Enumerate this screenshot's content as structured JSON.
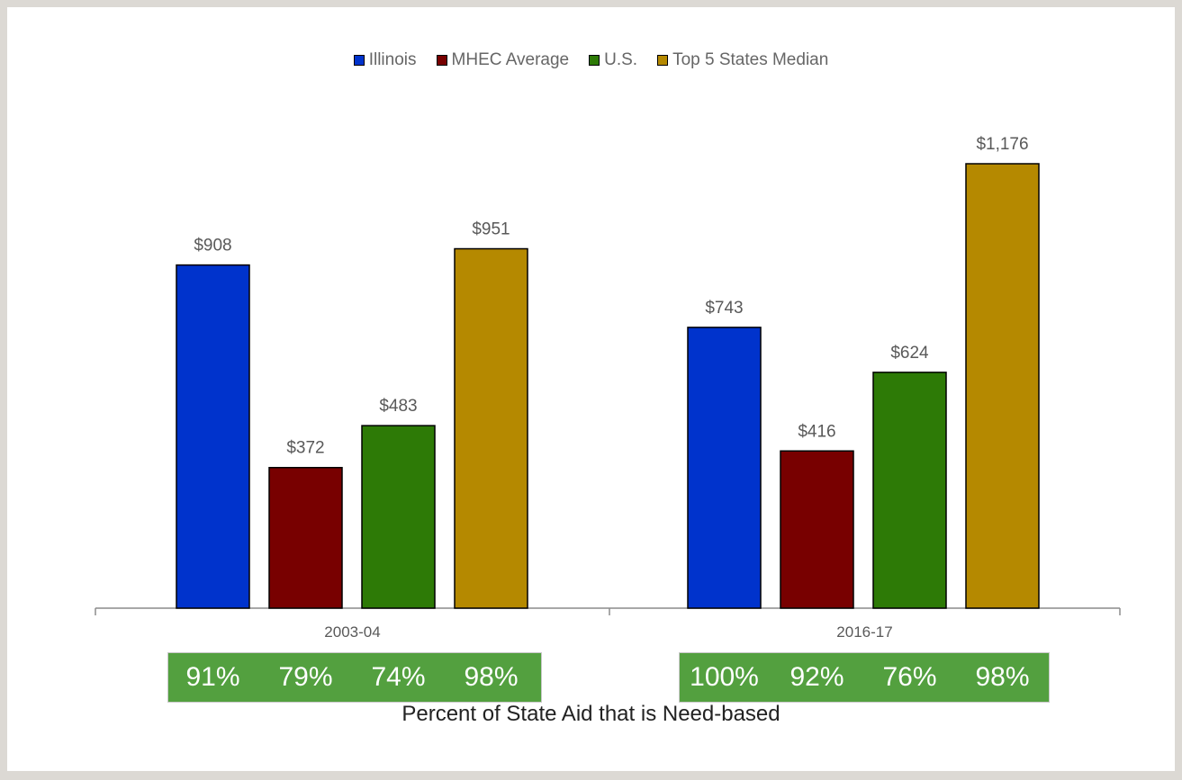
{
  "chart_data": {
    "type": "bar",
    "categories": [
      "2003-04",
      "2016-17"
    ],
    "series": [
      {
        "name": "Illinois",
        "color": "#0033cc",
        "values": [
          908,
          743
        ],
        "labels": [
          "$908",
          "$743"
        ]
      },
      {
        "name": "MHEC Average",
        "color": "#780000",
        "values": [
          372,
          416
        ],
        "labels": [
          "$372",
          "$416"
        ]
      },
      {
        "name": "U.S.",
        "color": "#2d7a06",
        "values": [
          483,
          624
        ],
        "labels": [
          "$483",
          "$624"
        ]
      },
      {
        "name": "Top 5 States Median",
        "color": "#b58900",
        "values": [
          951,
          1176
        ],
        "labels": [
          "$951",
          "$1,176"
        ]
      }
    ],
    "ylim": [
      0,
      1176
    ],
    "legend_position": "top-center",
    "need_based_percent": [
      [
        "91%",
        "79%",
        "74%",
        "98%"
      ],
      [
        "100%",
        "92%",
        "76%",
        "98%"
      ]
    ],
    "footer_title": "Percent of State Aid that is Need-based"
  }
}
